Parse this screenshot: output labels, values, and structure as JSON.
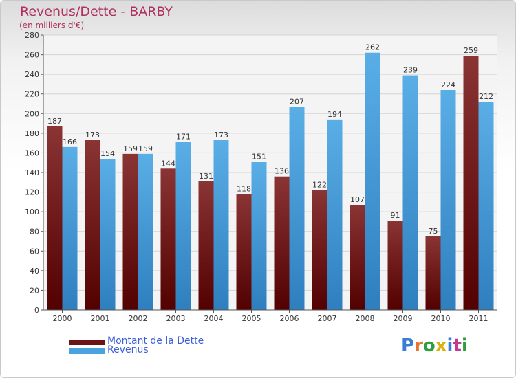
{
  "header": {
    "title": "Revenus/Dette - BARBY",
    "subtitle": "(en milliers d'€)"
  },
  "legend": [
    {
      "label": "Montant de la Dette",
      "color": "#6b1416"
    },
    {
      "label": "Revenus",
      "color": "#4aa3df"
    }
  ],
  "logo": {
    "text": "Proxiti",
    "colors": [
      "#3a7bd5",
      "#e8732a",
      "#2e9e3e",
      "#d9b20f",
      "#3a7bd5",
      "#c23b8f",
      "#2e9e3e"
    ]
  },
  "chart_data": {
    "type": "bar",
    "title": "Revenus/Dette - BARBY",
    "subtitle": "(en milliers d'€)",
    "categories": [
      "2000",
      "2001",
      "2002",
      "2003",
      "2004",
      "2005",
      "2006",
      "2007",
      "2008",
      "2009",
      "2010",
      "2011"
    ],
    "series": [
      {
        "name": "Montant de la Dette",
        "color": "#6b1416",
        "values": [
          187,
          173,
          159,
          144,
          131,
          118,
          136,
          122,
          107,
          91,
          75,
          259
        ]
      },
      {
        "name": "Revenus",
        "color": "#4aa3df",
        "values": [
          166,
          154,
          159,
          171,
          173,
          151,
          207,
          194,
          262,
          239,
          224,
          212
        ]
      }
    ],
    "ylim": [
      0,
      280
    ],
    "yticks": [
      0,
      20,
      40,
      60,
      80,
      100,
      120,
      140,
      160,
      180,
      200,
      220,
      240,
      260,
      280
    ],
    "grid": true,
    "legend_position": "bottom-left"
  }
}
